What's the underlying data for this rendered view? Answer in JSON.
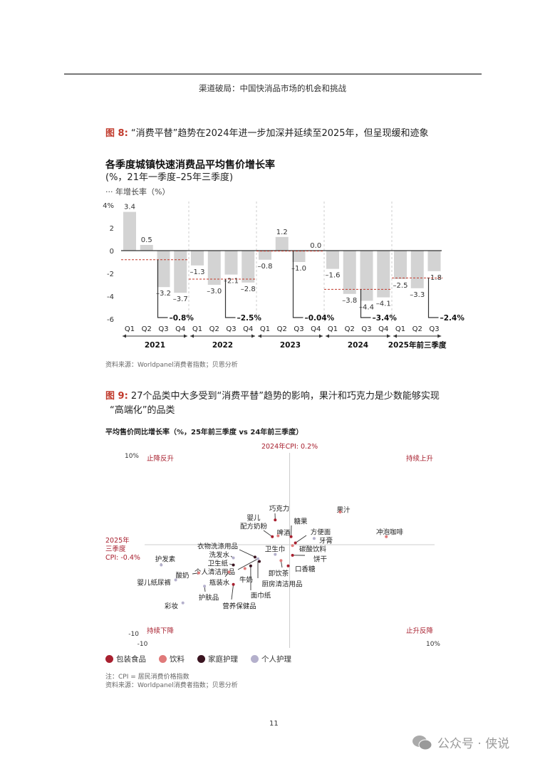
{
  "header": {
    "title": "渠道破局：中国快消品市场的机会和挑战"
  },
  "figure8": {
    "label": "图 8:",
    "caption": "“消费平替”趋势在2024年进一步加深并延续至2025年，但呈现缓和迹象",
    "title": "各季度城镇快速消费品平均售价增长率",
    "subtitle": "(%，21年一季度–25年三季度)",
    "legend": "··· 年增长率（%）",
    "source": "资料来源：Worldpanel消费者指数；贝恩分析"
  },
  "chart_data": [
    {
      "type": "bar",
      "ylim": [
        -6,
        4
      ],
      "yticks": [
        "4%",
        "2",
        "0",
        "-2",
        "-4",
        "-6"
      ],
      "categories": [
        "Q1",
        "Q2",
        "Q3",
        "Q4",
        "Q1",
        "Q2",
        "Q3",
        "Q4",
        "Q1",
        "Q2",
        "Q3",
        "Q4",
        "Q1",
        "Q2",
        "Q3",
        "Q4",
        "Q1",
        "Q2",
        "Q3"
      ],
      "values": [
        3.4,
        0.5,
        -3.2,
        -3.7,
        -1.3,
        -3.0,
        -2.1,
        -2.8,
        -0.8,
        1.2,
        -1.0,
        0.0,
        -1.6,
        -3.8,
        -4.4,
        -4.1,
        -2.5,
        -3.3,
        -1.8
      ],
      "value_labels": [
        "3.4",
        "0.5",
        "–3.2",
        "–3.7",
        "–1.3",
        "–3.0",
        "–2.1",
        "–2.8",
        "–0.8",
        "1.2",
        "–1.0",
        "0.0",
        "–1.6",
        "–3.8",
        "–4.4",
        "–4.1",
        "–2.5",
        "–3.3",
        "–1.8"
      ],
      "groups": [
        {
          "name": "2021",
          "quarters": 4,
          "annual": -0.8,
          "annual_label": "–0.8%"
        },
        {
          "name": "2022",
          "quarters": 4,
          "annual": -2.5,
          "annual_label": "–2.5%"
        },
        {
          "name": "2023",
          "quarters": 4,
          "annual": -0.04,
          "annual_label": "–0.04%"
        },
        {
          "name": "2024",
          "quarters": 4,
          "annual": -3.4,
          "annual_label": "–3.4%"
        },
        {
          "name": "2025年前三季度",
          "quarters": 3,
          "annual": -2.4,
          "annual_label": "–2.4%"
        }
      ],
      "bar_color": "#d3d3d3",
      "annual_line_color": "#c0392b"
    },
    {
      "type": "scatter",
      "title": "平均售价同比增长率（%，25年前三季度 vs 24年前三季度）",
      "xlim": [
        -10,
        10
      ],
      "ylim": [
        -10,
        10
      ],
      "x_tick_labels": [
        "-10",
        "10%"
      ],
      "y_tick_labels": [
        "10%",
        "-10"
      ],
      "reference_lines": {
        "vertical": {
          "value": 0.2,
          "label": "2024年CPI: 0.2%"
        },
        "horizontal": {
          "value": -0.4,
          "label_lines": [
            "2025年",
            "三季度",
            "CPI: -0.4%"
          ]
        }
      },
      "quadrants": {
        "top_left": "止降反升",
        "top_right": "持续上升",
        "bottom_left": "持续下降",
        "bottom_right": "止升反降"
      },
      "series": [
        {
          "name": "包装食品",
          "color": "#a8202f"
        },
        {
          "name": "饮料",
          "color": "#e07a7a"
        },
        {
          "name": "家庭护理",
          "color": "#3a1420"
        },
        {
          "name": "个人护理",
          "color": "#b4b0cc"
        }
      ],
      "points": [
        {
          "label": "巧克力",
          "series": 0,
          "x": -0.8,
          "y": 2.4
        },
        {
          "label": "婴儿配方奶粉",
          "series": 0,
          "x": -1.0,
          "y": 0.5
        },
        {
          "label": "啤酒",
          "series": 1,
          "x": -0.6,
          "y": 0.6
        },
        {
          "label": "糖果",
          "series": 0,
          "x": 0.3,
          "y": 0.5
        },
        {
          "label": "果汁",
          "series": 1,
          "x": 3.7,
          "y": 3.3
        },
        {
          "label": "冲泡咖啡",
          "series": 1,
          "x": 6.9,
          "y": 0.5
        },
        {
          "label": "方便面",
          "series": 0,
          "x": 0.6,
          "y": -0.2
        },
        {
          "label": "牙膏",
          "series": 3,
          "x": 1.9,
          "y": 0.3
        },
        {
          "label": "碳酸饮料",
          "series": 1,
          "x": 0.4,
          "y": -0.5
        },
        {
          "label": "饼干",
          "series": 0,
          "x": 0.4,
          "y": -1.6
        },
        {
          "label": "口香糖",
          "series": 0,
          "x": 0.1,
          "y": -2.8
        },
        {
          "label": "即饮茶",
          "series": 1,
          "x": -0.4,
          "y": -2.2
        },
        {
          "label": "卫生巾",
          "series": 3,
          "x": -0.8,
          "y": -1.5
        },
        {
          "label": "衣物洗涤用品",
          "series": 2,
          "x": -2.2,
          "y": -1.8
        },
        {
          "label": "厨房清洁用品",
          "series": 2,
          "x": -1.9,
          "y": -2.3
        },
        {
          "label": "洗发水",
          "series": 3,
          "x": -3.7,
          "y": -1.9
        },
        {
          "label": "卫生纸",
          "series": 2,
          "x": -3.7,
          "y": -2.7
        },
        {
          "label": "个人清洁用品",
          "series": 3,
          "x": -2.0,
          "y": -2.0
        },
        {
          "label": "面巾纸",
          "series": 2,
          "x": -2.5,
          "y": -2.8
        },
        {
          "label": "牛奶",
          "series": 1,
          "x": -2.9,
          "y": -3.1
        },
        {
          "label": "瓶装水",
          "series": 1,
          "x": -4.0,
          "y": -3.5
        },
        {
          "label": "酸奶",
          "series": 1,
          "x": -6.1,
          "y": -3.6
        },
        {
          "label": "营养保健品",
          "series": 0,
          "x": -3.7,
          "y": -4.9
        },
        {
          "label": "护肤品",
          "series": 3,
          "x": -5.7,
          "y": -5.1
        },
        {
          "label": "护发素",
          "series": 3,
          "x": -8.7,
          "y": -2.7
        },
        {
          "label": "婴儿纸尿裤",
          "series": 3,
          "x": -7.7,
          "y": -4.4
        },
        {
          "label": "彩妆",
          "series": 3,
          "x": -7.2,
          "y": -7.0
        }
      ]
    }
  ],
  "figure9": {
    "label": "图 9:",
    "caption_line1": "27个品类中大多受到“消费平替”趋势的影响，果汁和巧克力是少数能够实现",
    "caption_line2": "“高端化”的品类",
    "note": "注：CPI = 居民消费价格指数",
    "source": "资料来源：Worldpanel消费者指数；贝恩分析"
  },
  "footer": {
    "page_number": "11",
    "watermark": "公众号 · 侠说"
  }
}
